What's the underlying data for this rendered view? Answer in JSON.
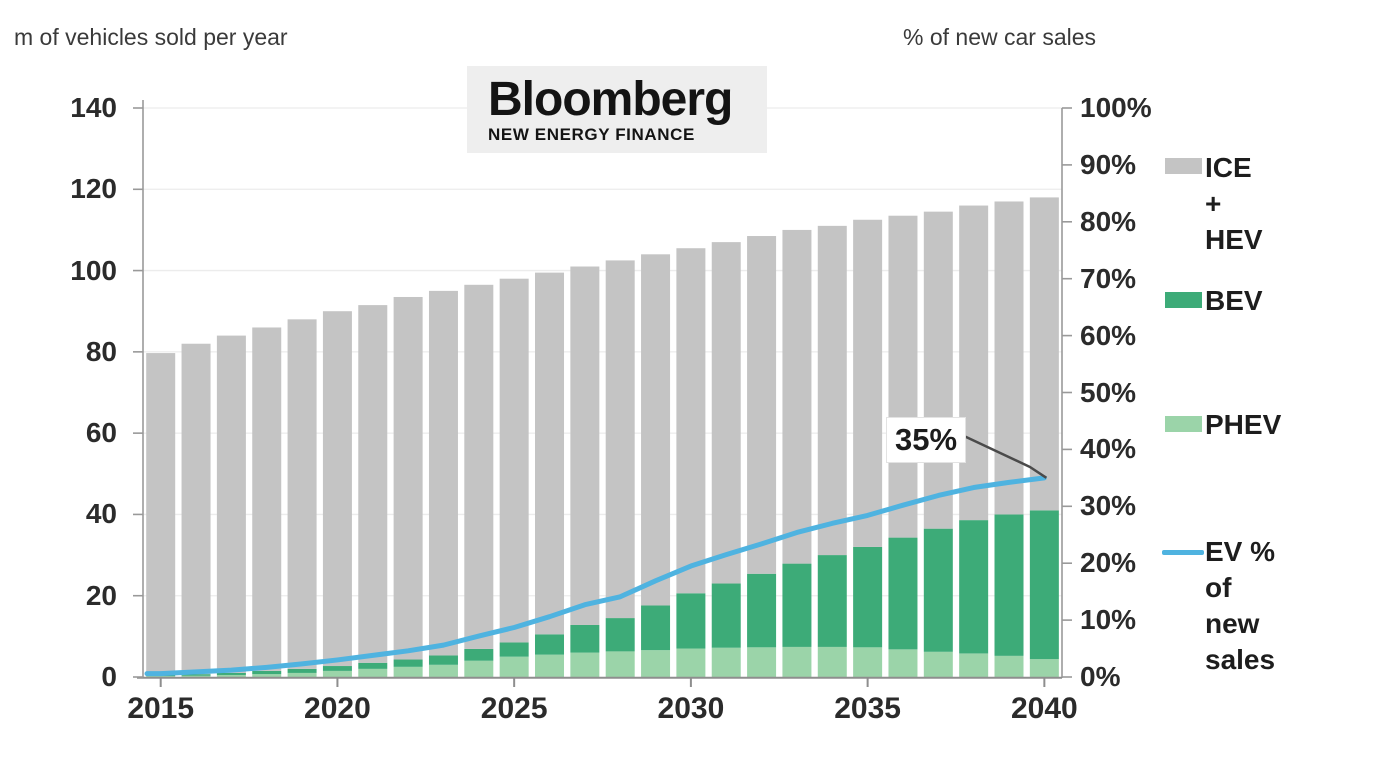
{
  "left_axis_title": "m of vehicles sold per year",
  "right_axis_title": "% of new car sales",
  "logo": {
    "line1": "Bloomberg",
    "line2": "NEW ENERGY FINANCE"
  },
  "annotation": {
    "text": "35%"
  },
  "colors": {
    "ice_hev": "#c4c4c4",
    "bev": "#3dab78",
    "phev": "#9bd4a9",
    "ev_line": "#4fb3e0",
    "grid": "#ececec",
    "axis": "#999999",
    "pointer": "#4a4a4a"
  },
  "legend": [
    {
      "id": "ice-hev",
      "label": "ICE +\nHEV",
      "color": "#c4c4c4",
      "type": "bar"
    },
    {
      "id": "bev",
      "label": "BEV",
      "color": "#3dab78",
      "type": "bar"
    },
    {
      "id": "phev",
      "label": "PHEV",
      "color": "#9bd4a9",
      "type": "bar"
    },
    {
      "id": "ev-share",
      "label": "EV % of\nnew\nsales",
      "color": "#4fb3e0",
      "type": "line"
    }
  ],
  "chart_data": {
    "type": "bar",
    "subtype": "stacked-bar-with-line",
    "x": [
      2015,
      2016,
      2017,
      2018,
      2019,
      2020,
      2021,
      2022,
      2023,
      2024,
      2025,
      2026,
      2027,
      2028,
      2029,
      2030,
      2031,
      2032,
      2033,
      2034,
      2035,
      2036,
      2037,
      2038,
      2039,
      2040
    ],
    "series": [
      {
        "name": "PHEV",
        "type": "bar",
        "axis": "left",
        "color": "#9bd4a9",
        "values": [
          0.2,
          0.3,
          0.5,
          0.7,
          1.0,
          1.5,
          2.0,
          2.5,
          3.0,
          4.0,
          5.0,
          5.5,
          6.0,
          6.3,
          6.6,
          7.0,
          7.2,
          7.3,
          7.4,
          7.4,
          7.3,
          6.8,
          6.2,
          5.8,
          5.2,
          4.4
        ]
      },
      {
        "name": "BEV",
        "type": "bar",
        "axis": "left",
        "color": "#3dab78",
        "values": [
          0.3,
          0.4,
          0.5,
          0.8,
          1.0,
          1.2,
          1.5,
          1.8,
          2.3,
          2.9,
          3.5,
          5.0,
          6.8,
          8.2,
          11.0,
          13.6,
          15.8,
          18.1,
          20.5,
          22.6,
          24.7,
          27.5,
          30.3,
          32.8,
          34.8,
          36.6
        ]
      },
      {
        "name": "ICE + HEV",
        "type": "bar",
        "axis": "left",
        "color": "#c4c4c4",
        "values": [
          79.2,
          81.3,
          83.0,
          84.5,
          86.0,
          87.3,
          88.0,
          89.2,
          89.7,
          89.6,
          89.5,
          89.0,
          88.2,
          88.0,
          86.4,
          84.9,
          84.0,
          83.1,
          82.1,
          81.0,
          80.5,
          79.2,
          78.0,
          77.4,
          77.0,
          77.0
        ]
      },
      {
        "name": "EV % of new sales",
        "type": "line",
        "axis": "right",
        "color": "#4fb3e0",
        "values": [
          0.6,
          0.9,
          1.2,
          1.7,
          2.3,
          3.0,
          3.8,
          4.6,
          5.6,
          7.2,
          8.7,
          10.6,
          12.7,
          14.1,
          16.9,
          19.5,
          21.5,
          23.4,
          25.4,
          27.0,
          28.4,
          30.2,
          31.9,
          33.3,
          34.2,
          35.0
        ]
      }
    ],
    "left_axis": {
      "title": "m of vehicles sold per year",
      "min": 0,
      "max": 140,
      "tick_step": 20,
      "tick_labels": [
        "0",
        "20",
        "40",
        "60",
        "80",
        "100",
        "120",
        "140"
      ]
    },
    "right_axis": {
      "title": "% of new car sales",
      "min": 0,
      "max": 100,
      "tick_step": 10,
      "tick_labels": [
        "0%",
        "10%",
        "20%",
        "30%",
        "40%",
        "50%",
        "60%",
        "70%",
        "80%",
        "90%",
        "100%"
      ]
    },
    "x_tick_labels": [
      "2015",
      "2020",
      "2025",
      "2030",
      "2035",
      "2040"
    ],
    "annotation": {
      "text": "35%",
      "target_year": 2040,
      "target_value": 35
    },
    "legend_position": "right",
    "grid": true,
    "stack_order_bottom_to_top": [
      "PHEV",
      "BEV",
      "ICE + HEV"
    ]
  }
}
